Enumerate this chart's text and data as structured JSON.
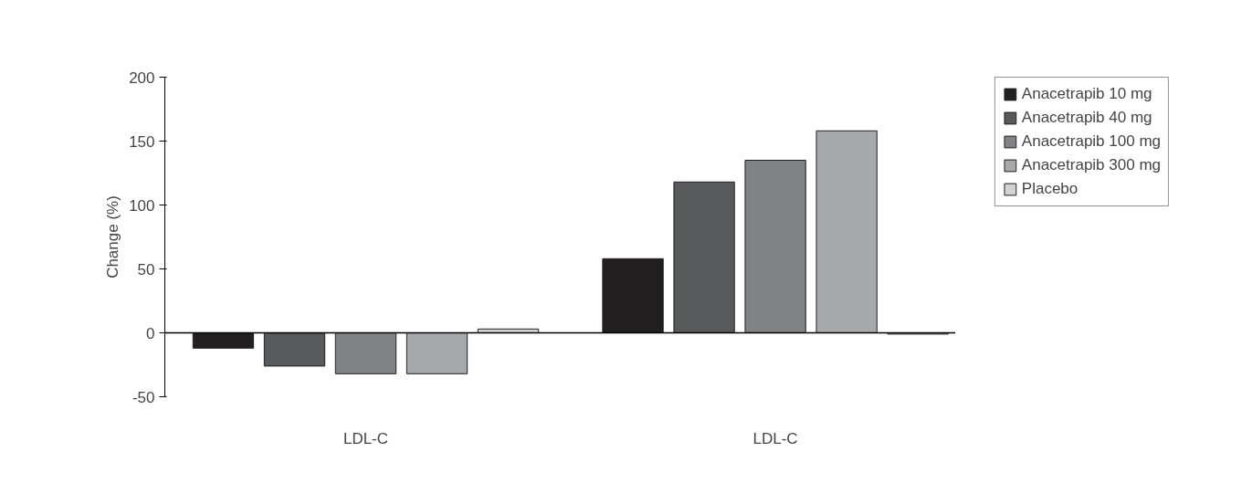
{
  "chart_data": {
    "type": "bar",
    "ylabel": "Change (%)",
    "categories": [
      "LDL-C",
      "LDL-C"
    ],
    "series": [
      {
        "name": "Anacetrapib 10 mg",
        "color": "#231f20",
        "values": [
          -12,
          58
        ]
      },
      {
        "name": "Anacetrapib 40 mg",
        "color": "#58595b",
        "values": [
          -26,
          118
        ]
      },
      {
        "name": "Anacetrapib 100 mg",
        "color": "#808285",
        "values": [
          -32,
          135
        ]
      },
      {
        "name": "Anacetrapib 300 mg",
        "color": "#a7a9ac",
        "values": [
          -32,
          158
        ]
      },
      {
        "name": "Placebo",
        "color": "#d1d3d4",
        "values": [
          3,
          -1
        ]
      }
    ],
    "ylim": [
      -50,
      200
    ],
    "yticks": [
      -50,
      0,
      50,
      100,
      150,
      200
    ],
    "grid": false,
    "legend": "top right",
    "ref_lines": [
      {
        "axis": "y",
        "value": 0,
        "color": "#000000"
      }
    ]
  }
}
